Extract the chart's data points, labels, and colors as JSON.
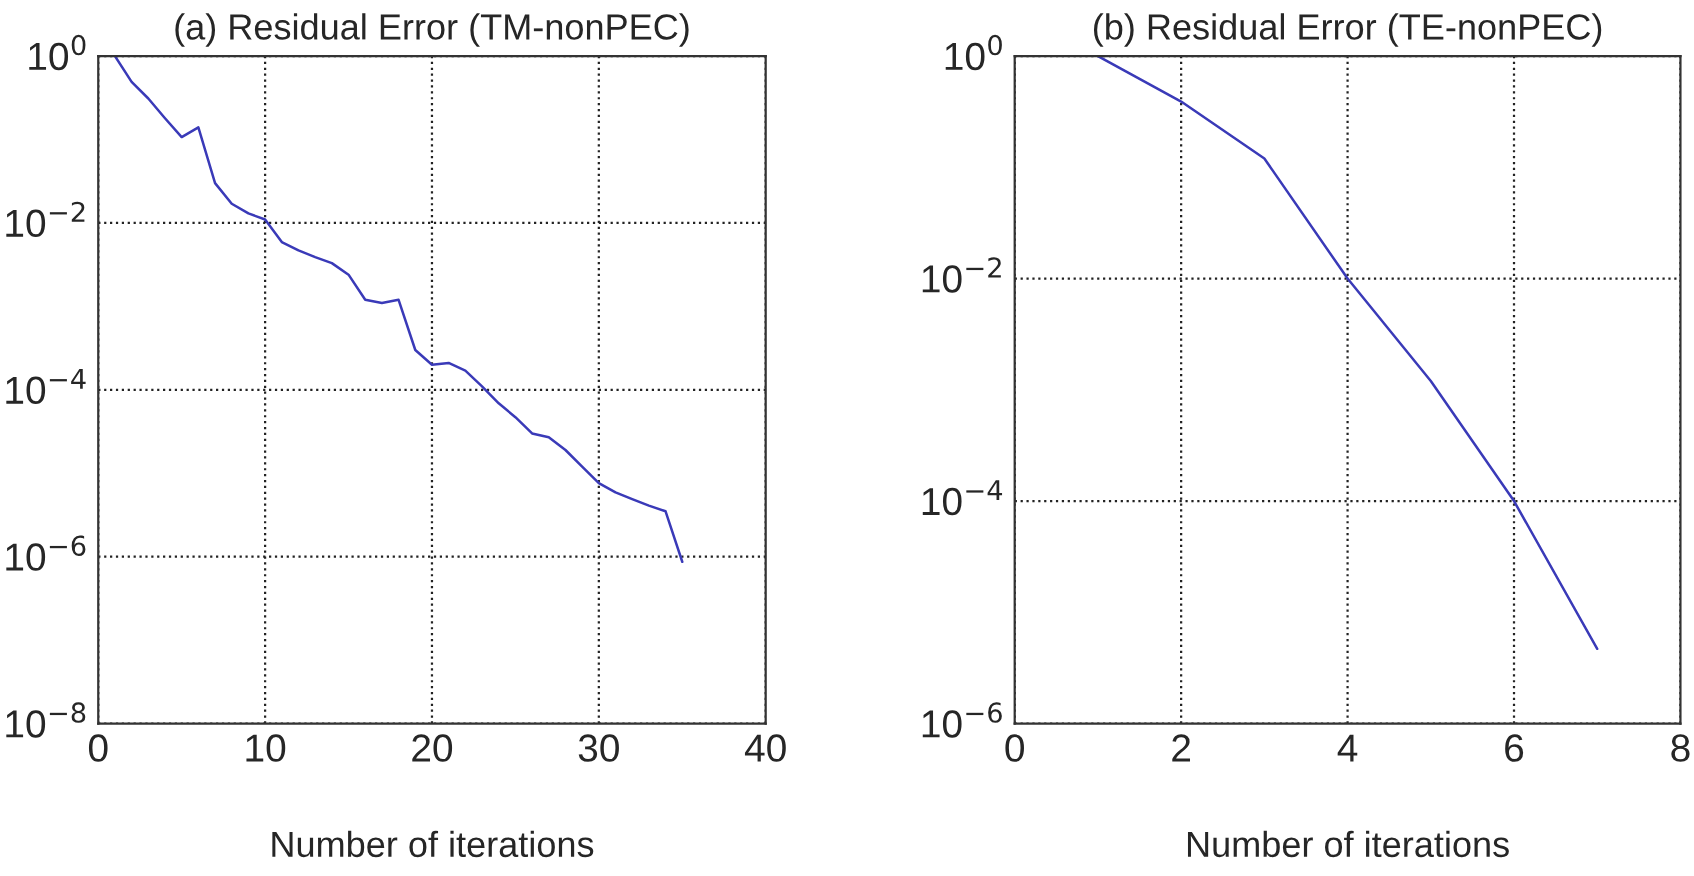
{
  "chart_data": [
    {
      "type": "line",
      "title": "(a) Residual Error (TM-nonPEC)",
      "xlabel": "Number of iterations",
      "log": "y",
      "grid": true,
      "line_style": "solid",
      "marker": "none",
      "x": [
        1,
        2,
        3,
        4,
        5,
        6,
        7,
        8,
        9,
        10,
        11,
        12,
        13,
        14,
        15,
        16,
        17,
        18,
        19,
        20,
        21,
        22,
        23,
        24,
        25,
        26,
        27,
        28,
        29,
        30,
        31,
        32,
        33,
        34,
        35
      ],
      "series": [
        {
          "color": "#3a3ab8",
          "values": [
            1.0,
            0.49,
            0.31,
            0.18,
            0.107,
            0.14,
            0.03,
            0.017,
            0.013,
            0.011,
            0.0059,
            0.0047,
            0.0039,
            0.0033,
            0.0024,
            0.0012,
            0.0011,
            0.0012,
            0.0003,
            0.0002,
            0.00021,
            0.00017,
            0.00011,
            6.9e-05,
            4.7e-05,
            3e-05,
            2.7e-05,
            1.9e-05,
            1.2e-05,
            7.6e-06,
            5.9e-06,
            4.9e-06,
            4.1e-06,
            3.5e-06,
            8.7e-07
          ]
        }
      ],
      "xlim": [
        0,
        40
      ],
      "xticks": [
        0,
        10,
        20,
        30,
        40
      ],
      "ylim": [
        1e-08,
        1
      ],
      "yticks": [
        {
          "value": 1e-08,
          "label": "10$^{−8}$"
        },
        {
          "value": 1e-06,
          "label": "10$^{−6}$"
        },
        {
          "value": 0.0001,
          "label": "10$^{−4}$"
        },
        {
          "value": 0.01,
          "label": "10$^{−2}$"
        },
        {
          "value": 1,
          "label": "10$^{0}$"
        }
      ]
    },
    {
      "type": "line",
      "title": "(b) Residual Error (TE-nonPEC)",
      "xlabel": "Number of iterations",
      "log": "y",
      "grid": true,
      "line_style": "solid",
      "marker": "none",
      "x": [
        1,
        2,
        3,
        4,
        5,
        6,
        7
      ],
      "series": [
        {
          "color": "#3a3ab8",
          "values": [
            1.0,
            0.39,
            0.12,
            0.01,
            0.0012,
            0.0001,
            4.7e-06
          ]
        }
      ],
      "xlim": [
        0,
        8
      ],
      "xticks": [
        0,
        2,
        4,
        6,
        8
      ],
      "ylim": [
        1e-06,
        1
      ],
      "yticks": [
        {
          "value": 1e-06,
          "label": "10$^{−6}$"
        },
        {
          "value": 0.0001,
          "label": "10$^{−4}$"
        },
        {
          "value": 0.01,
          "label": "10$^{−2}$"
        },
        {
          "value": 1,
          "label": "10$^{0}$"
        }
      ]
    }
  ]
}
